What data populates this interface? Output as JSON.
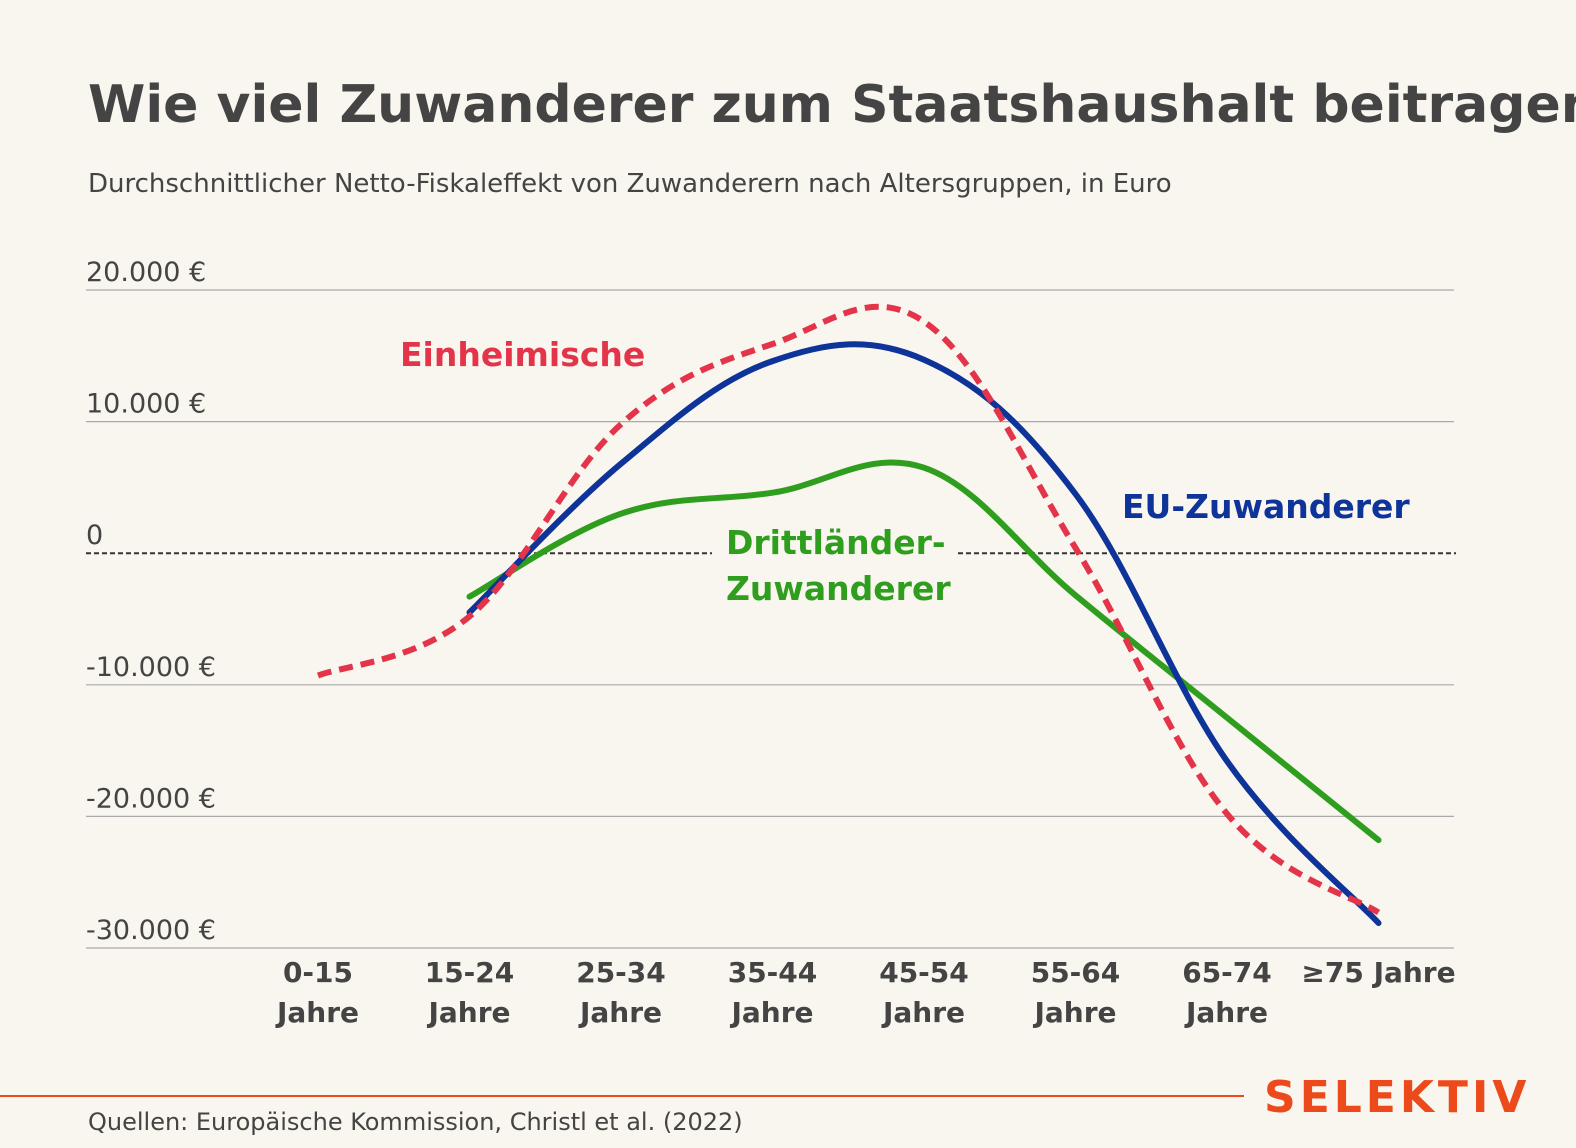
{
  "header": {
    "title": "Wie viel Zuwanderer zum Staatshaushalt beitragen",
    "subtitle": "Durchschnittlicher Netto-Fiskaleffekt von Zuwanderern nach Altersgruppen, in Euro"
  },
  "footer": {
    "source": "Quellen: Europäische Kommission, Christl et al. (2022)",
    "brand": "SELEKTIV"
  },
  "colors": {
    "background": "#f8f6ee",
    "text": "#444444",
    "einheimische": "#e3344a",
    "eu": "#0e3399",
    "drittlaender": "#2f9e1e",
    "brand": "#ec4a1a",
    "grid": "#aaaaaa"
  },
  "chart_data": {
    "type": "line",
    "title": "Wie viel Zuwanderer zum Staatshaushalt beitragen",
    "subtitle": "Durchschnittlicher Netto-Fiskaleffekt von Zuwanderern nach Altersgruppen, in Euro",
    "categories": [
      [
        "0-15",
        "Jahre"
      ],
      [
        "15-24",
        "Jahre"
      ],
      [
        "25-34",
        "Jahre"
      ],
      [
        "35-44",
        "Jahre"
      ],
      [
        "45-54",
        "Jahre"
      ],
      [
        "55-64",
        "Jahre"
      ],
      [
        "65-74",
        "Jahre"
      ],
      [
        "≥75 Jahre"
      ]
    ],
    "y_ticks": [
      {
        "value": 20000,
        "label": "20.000 €"
      },
      {
        "value": 10000,
        "label": "10.000 €"
      },
      {
        "value": 0,
        "label": "0"
      },
      {
        "value": -10000,
        "label": "-10.000 €"
      },
      {
        "value": -20000,
        "label": "-20.000 €"
      },
      {
        "value": -30000,
        "label": "-30.000 €"
      }
    ],
    "ylim": [
      -30000,
      20000
    ],
    "grid": true,
    "zero_line": "dashed",
    "series": [
      {
        "name": "Einheimische",
        "style": "dashed",
        "color": "#e3344a",
        "values": [
          -9300,
          -4800,
          9800,
          15900,
          17600,
          400,
          -19800,
          -27300
        ]
      },
      {
        "name": "EU-Zuwanderer",
        "style": "solid",
        "color": "#0e3399",
        "values": [
          null,
          -4500,
          6800,
          14600,
          14700,
          4500,
          -15800,
          -28100
        ]
      },
      {
        "name": "Drittländer-Zuwanderer",
        "label_lines": [
          "Drittländer-",
          "Zuwanderer"
        ],
        "style": "solid",
        "color": "#2f9e1e",
        "values": [
          null,
          -3300,
          3000,
          4600,
          6500,
          -3200,
          -12500,
          -21800
        ]
      }
    ]
  }
}
